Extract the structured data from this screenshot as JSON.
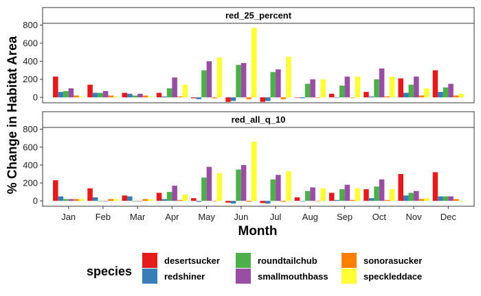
{
  "chart_data": {
    "type": "bar",
    "xlabel": "Month",
    "ylabel": "% Change in Habitat Area",
    "categories": [
      "Jan",
      "Feb",
      "Mar",
      "Apr",
      "May",
      "Jun",
      "Jul",
      "Aug",
      "Sep",
      "Oct",
      "Nov",
      "Dec"
    ],
    "ylim": [
      -60,
      820
    ],
    "yticks": [
      0,
      200,
      400,
      600,
      800
    ],
    "grid": false,
    "legend": {
      "title": "species",
      "placement": "bottom",
      "entries": [
        {
          "name": "desertsucker",
          "color": "#E41A1C"
        },
        {
          "name": "redshiner",
          "color": "#377EB8"
        },
        {
          "name": "roundtailchub",
          "color": "#4DAF4A"
        },
        {
          "name": "smallmouthbass",
          "color": "#984EA3"
        },
        {
          "name": "sonorasucker",
          "color": "#FF7F00"
        },
        {
          "name": "speckleddace",
          "color": "#FFFF33"
        }
      ]
    },
    "panels": [
      {
        "title": "red_25_percent",
        "series": [
          {
            "name": "desertsucker",
            "values": [
              230,
              140,
              50,
              50,
              -10,
              -50,
              -50,
              0,
              40,
              60,
              210,
              300
            ]
          },
          {
            "name": "redshiner",
            "values": [
              60,
              50,
              40,
              10,
              -20,
              -40,
              -40,
              -10,
              0,
              10,
              50,
              60
            ]
          },
          {
            "name": "roundtailchub",
            "values": [
              70,
              50,
              20,
              100,
              300,
              360,
              280,
              150,
              130,
              200,
              140,
              110
            ]
          },
          {
            "name": "smallmouthbass",
            "values": [
              100,
              70,
              40,
              220,
              400,
              380,
              310,
              200,
              230,
              320,
              230,
              150
            ]
          },
          {
            "name": "sonorasucker",
            "values": [
              20,
              20,
              20,
              10,
              -10,
              -20,
              -20,
              -5,
              0,
              10,
              20,
              20
            ]
          },
          {
            "name": "speckleddace",
            "values": [
              10,
              10,
              10,
              140,
              440,
              770,
              450,
              200,
              230,
              230,
              100,
              40
            ]
          }
        ]
      },
      {
        "title": "red_all_q_10",
        "series": [
          {
            "name": "desertsucker",
            "values": [
              230,
              140,
              60,
              90,
              30,
              -20,
              -25,
              40,
              90,
              130,
              300,
              320
            ]
          },
          {
            "name": "redshiner",
            "values": [
              50,
              40,
              50,
              20,
              -10,
              -30,
              -30,
              0,
              10,
              30,
              60,
              50
            ]
          },
          {
            "name": "roundtailchub",
            "values": [
              20,
              0,
              0,
              100,
              260,
              350,
              240,
              110,
              130,
              160,
              90,
              50
            ]
          },
          {
            "name": "smallmouthbass",
            "values": [
              20,
              0,
              0,
              170,
              380,
              400,
              290,
              150,
              180,
              240,
              110,
              50
            ]
          },
          {
            "name": "sonorasucker",
            "values": [
              20,
              20,
              20,
              10,
              0,
              -10,
              -10,
              0,
              10,
              10,
              20,
              20
            ]
          },
          {
            "name": "speckleddace",
            "values": [
              20,
              20,
              20,
              70,
              310,
              660,
              330,
              140,
              140,
              130,
              30,
              0
            ]
          }
        ]
      }
    ]
  }
}
